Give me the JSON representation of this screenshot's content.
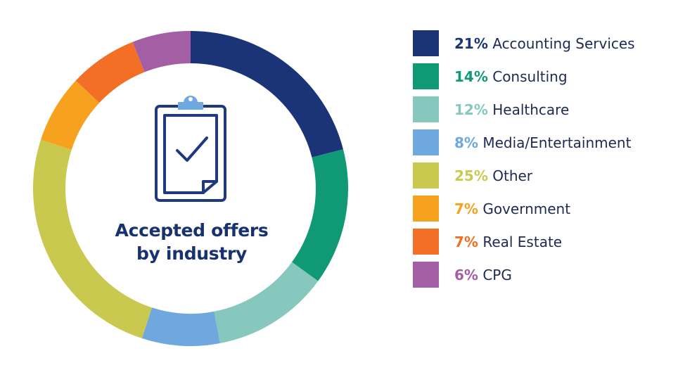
{
  "chart_data": {
    "type": "pie",
    "title": "Accepted offers by industry",
    "title_lines": [
      "Accepted offers",
      "by industry"
    ],
    "inner_icon": "clipboard-check-icon",
    "legend_position": "right",
    "slices": [
      {
        "label": "Accounting Services",
        "value": 21,
        "pct_text": "21%",
        "color": "#1b3478"
      },
      {
        "label": "Consulting",
        "value": 14,
        "pct_text": "14%",
        "color": "#0f9974"
      },
      {
        "label": "Healthcare",
        "value": 12,
        "pct_text": "12%",
        "color": "#86c8bd"
      },
      {
        "label": "Media/Entertainment",
        "value": 8,
        "pct_text": "8%",
        "color": "#6fa8de"
      },
      {
        "label": "Other",
        "value": 25,
        "pct_text": "25%",
        "color": "#c9c84f"
      },
      {
        "label": "Government",
        "value": 7,
        "pct_text": "7%",
        "color": "#f6a21f"
      },
      {
        "label": "Real Estate",
        "value": 7,
        "pct_text": "7%",
        "color": "#f26f25"
      },
      {
        "label": "CPG",
        "value": 6,
        "pct_text": "6%",
        "color": "#a45ea3"
      }
    ]
  }
}
